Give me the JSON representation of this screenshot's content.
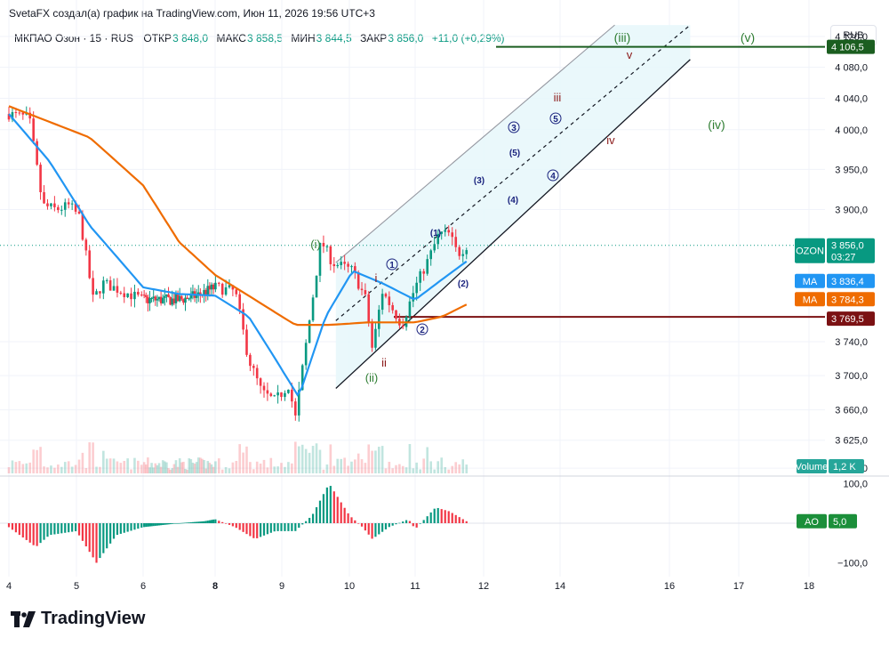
{
  "header": {
    "attribution": "SvetaFX создал(а) график на TradingView.com, Июн 11, 2026 19:56 UTC+3",
    "symbol": "МКПАО Озон · 15 · RUS",
    "open_label": "ОТКР",
    "open": "3 848,0",
    "high_label": "МАКС",
    "high": "3 858,5",
    "low_label": "МИН",
    "low": "3 844,5",
    "close_label": "ЗАКР",
    "close": "3 856,0",
    "change": "+11,0 (+0,29%)",
    "currency": "RUB"
  },
  "branding": {
    "logo_text": "TradingView"
  },
  "colors": {
    "up": "#089981",
    "down": "#f23645",
    "ma_fast": "#2196f3",
    "ma_slow": "#ef6c00",
    "channel_fill": "#e6f7fa",
    "green_level": "#1b5e20",
    "red_level": "#7b1113",
    "wave_blue": "#1a237e",
    "wave_green": "#2e7d32",
    "wave_red": "#8b1a1a",
    "ao_up": "#089981",
    "ao_down": "#f23645"
  },
  "price_axis": {
    "ticks": [
      "4 120,0",
      "4 080,0",
      "4 040,0",
      "4 000,0",
      "3 950,0",
      "3 900,0",
      "3 740,0",
      "3 700,0",
      "3 660,0",
      "3 625,0",
      "3 593,0"
    ],
    "tags": [
      {
        "label": "",
        "value": "4 106,5",
        "color": "#1b5e20"
      },
      {
        "label": "OZON",
        "value": "3 856,0",
        "sub": "03:27",
        "color": "#089981"
      },
      {
        "label": "MA",
        "value": "3 836,4",
        "color": "#2196f3"
      },
      {
        "label": "MA",
        "value": "3 784,3",
        "color": "#ef6c00"
      },
      {
        "label": "",
        "value": "3 769,5",
        "color": "#7b1113"
      },
      {
        "label": "Volume",
        "value": "1,2 K",
        "color": "#26a69a"
      }
    ]
  },
  "ao_axis": {
    "ticks": [
      "100,0",
      "−100,0"
    ],
    "tag_label": "AO",
    "tag_value": "5,0"
  },
  "time_axis": {
    "ticks": [
      "4",
      "5",
      "6",
      "8",
      "9",
      "10",
      "11",
      "12",
      "14",
      "16",
      "17",
      "18"
    ]
  },
  "wave_labels": {
    "green": [
      "(i)",
      "(ii)",
      "(iii)",
      "(iv)",
      "(v)"
    ],
    "red": [
      "i",
      "ii",
      "iii",
      "iv",
      "v"
    ],
    "blue_circled": [
      "1",
      "2",
      "3",
      "4",
      "5"
    ],
    "blue_paren": [
      "(1)",
      "(2)",
      "(3)",
      "(4)",
      "(5)"
    ]
  },
  "chart_data": {
    "type": "candlestick",
    "title": "МКПАО Озон · 15 · RUS",
    "y_scale": "log",
    "ylim": [
      3580,
      4135
    ],
    "x_ticks": [
      "4",
      "5",
      "6",
      "8",
      "9",
      "10",
      "11",
      "12",
      "14",
      "16",
      "17",
      "18"
    ],
    "price_path": [
      [
        4,
        4020
      ],
      [
        4.3,
        4015
      ],
      [
        4.5,
        3905
      ],
      [
        4.7,
        3900
      ],
      [
        4.9,
        3905
      ],
      [
        5.05,
        3890
      ],
      [
        5.25,
        3790
      ],
      [
        5.4,
        3810
      ],
      [
        6,
        3790
      ],
      [
        6.5,
        3790
      ],
      [
        7,
        3790
      ],
      [
        7.5,
        3795
      ],
      [
        8,
        3805
      ],
      [
        8.3,
        3800
      ],
      [
        8.5,
        3720
      ],
      [
        8.7,
        3680
      ],
      [
        8.9,
        3670
      ],
      [
        9.1,
        3690
      ],
      [
        9.2,
        3650
      ],
      [
        9.4,
        3760
      ],
      [
        9.58,
        3862
      ],
      [
        9.75,
        3835
      ],
      [
        10.05,
        3825
      ],
      [
        10.25,
        3790
      ],
      [
        10.35,
        3730
      ],
      [
        10.5,
        3800
      ],
      [
        10.8,
        3760
      ],
      [
        11.0,
        3805
      ],
      [
        11.2,
        3840
      ],
      [
        11.35,
        3870
      ],
      [
        11.5,
        3870
      ],
      [
        11.62,
        3845
      ],
      [
        11.75,
        3856
      ]
    ],
    "ma_fast_path": [
      [
        4,
        4020
      ],
      [
        4.6,
        3960
      ],
      [
        5.2,
        3880
      ],
      [
        6,
        3805
      ],
      [
        7,
        3797
      ],
      [
        8,
        3795
      ],
      [
        8.5,
        3770
      ],
      [
        8.9,
        3720
      ],
      [
        9.25,
        3675
      ],
      [
        9.65,
        3770
      ],
      [
        10.05,
        3825
      ],
      [
        10.5,
        3810
      ],
      [
        11.0,
        3790
      ],
      [
        11.4,
        3815
      ],
      [
        11.75,
        3836.4
      ]
    ],
    "ma_slow_path": [
      [
        4,
        4030
      ],
      [
        4.6,
        4010
      ],
      [
        5.2,
        3990
      ],
      [
        6,
        3930
      ],
      [
        7,
        3860
      ],
      [
        8,
        3820
      ],
      [
        8.6,
        3790
      ],
      [
        9.2,
        3760
      ],
      [
        9.7,
        3760
      ],
      [
        10.3,
        3763
      ],
      [
        11.0,
        3763
      ],
      [
        11.4,
        3770
      ],
      [
        11.75,
        3784.3
      ]
    ],
    "horizontal_levels": [
      4106.5,
      3769.5
    ],
    "channel": {
      "lower": [
        [
          9.8,
          3685
        ],
        [
          16.3,
          4090
        ]
      ],
      "middle": [
        [
          9.8,
          3765
        ],
        [
          16.3,
          4135
        ]
      ],
      "upper": [
        [
          9.8,
          3835
        ],
        [
          15.0,
          4135
        ]
      ]
    },
    "last_price": 3856.0,
    "ma_fast_last": 3836.4,
    "ma_slow_last": 3784.3,
    "volume_last": "1,2 K",
    "ao_range": [
      -100,
      100
    ],
    "ao_last": 5.0,
    "ao_profile": [
      [
        4.0,
        -10
      ],
      [
        4.4,
        -60
      ],
      [
        4.6,
        -30
      ],
      [
        5.0,
        -20
      ],
      [
        5.3,
        -100
      ],
      [
        5.6,
        -30
      ],
      [
        6.0,
        -10
      ],
      [
        7.0,
        0
      ],
      [
        7.7,
        5
      ],
      [
        8.0,
        10
      ],
      [
        8.3,
        -10
      ],
      [
        8.6,
        -40
      ],
      [
        8.9,
        -20
      ],
      [
        9.2,
        -20
      ],
      [
        9.45,
        20
      ],
      [
        9.7,
        100
      ],
      [
        10.0,
        20
      ],
      [
        10.2,
        -10
      ],
      [
        10.35,
        -40
      ],
      [
        10.6,
        -10
      ],
      [
        10.9,
        10
      ],
      [
        11.0,
        -15
      ],
      [
        11.3,
        40
      ],
      [
        11.5,
        30
      ],
      [
        11.75,
        5
      ]
    ]
  }
}
